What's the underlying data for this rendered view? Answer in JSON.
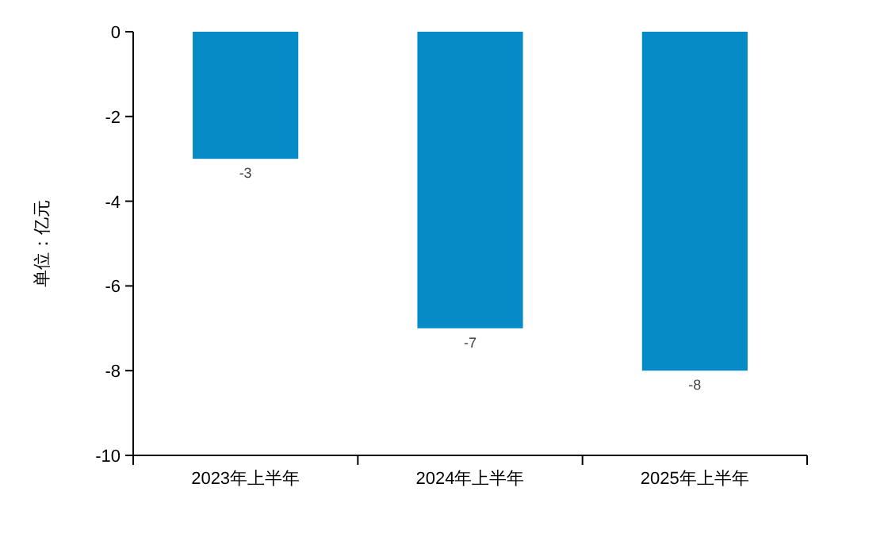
{
  "chart_data": {
    "type": "bar",
    "ylabel": "单位：亿元",
    "categories": [
      "2023年上半年",
      "2024年上半年",
      "2025年上半年"
    ],
    "values": [
      -3,
      -7,
      -8
    ],
    "color": "#078bc7",
    "ylim": [
      -10,
      0
    ],
    "yticks": [
      -10,
      -8,
      -6,
      -4,
      -2,
      0
    ],
    "data_labels": true
  }
}
